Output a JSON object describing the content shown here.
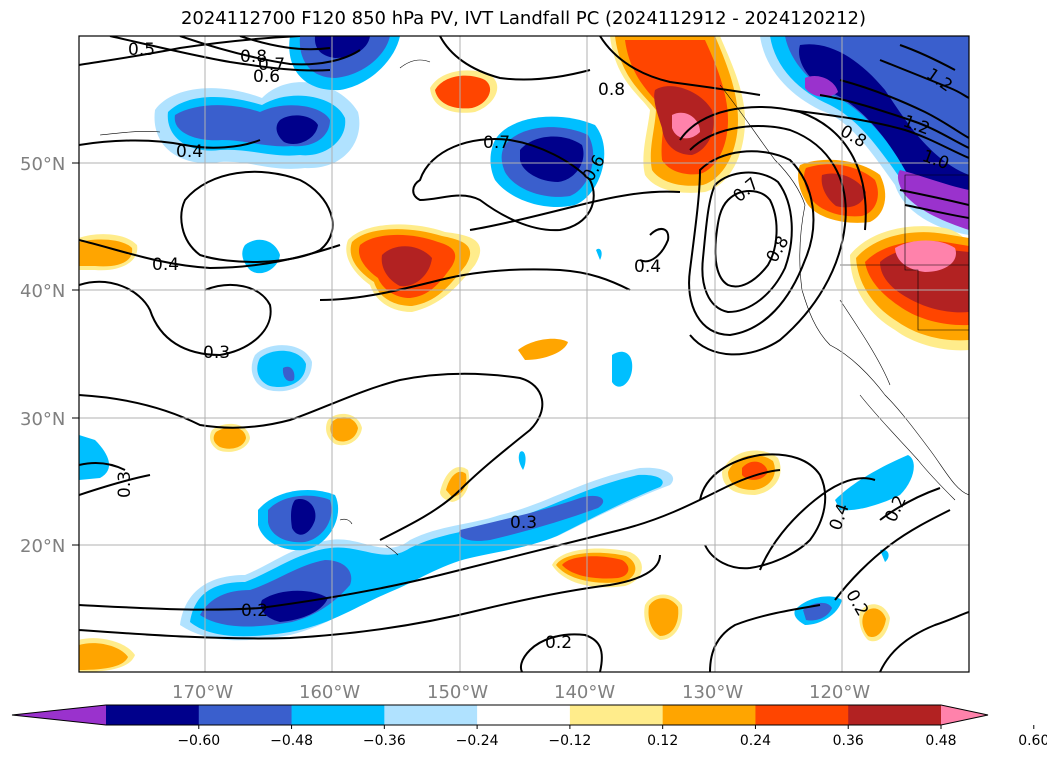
{
  "title": "2024112700 F120 850 hPa PV, IVT Landfall PC (2024112912 - 2024120212)",
  "axes": {
    "lat_ticks": [
      "50°N",
      "40°N",
      "30°N",
      "20°N"
    ],
    "lon_ticks": [
      "170°W",
      "160°W",
      "150°W",
      "140°W",
      "130°W",
      "120°W"
    ],
    "grid": true
  },
  "contour_labels": [
    "0.5",
    "0.8",
    "0.7",
    "0.6",
    "0.4",
    "0.4",
    "0.3",
    "0.3",
    "0.2",
    "0.2",
    "0.3",
    "0.7",
    "0.6",
    "0.8",
    "0.4",
    "0.7",
    "0.8",
    "1.2",
    "1.2",
    "1.0",
    "0.8",
    "0.4",
    "0.2",
    "0.2"
  ],
  "colorbar": {
    "ticks": [
      "−0.60",
      "−0.48",
      "−0.36",
      "−0.24",
      "−0.12",
      "0.12",
      "0.24",
      "0.36",
      "0.48",
      "0.60"
    ],
    "colors": [
      "#9a32cd",
      "#00008b",
      "#3a5fcd",
      "#00bfff",
      "#b0e2ff",
      "#ffffff",
      "#ffec8b",
      "#ffa500",
      "#ff4500",
      "#b22222",
      "#ff82ab"
    ],
    "extend": "both"
  }
}
